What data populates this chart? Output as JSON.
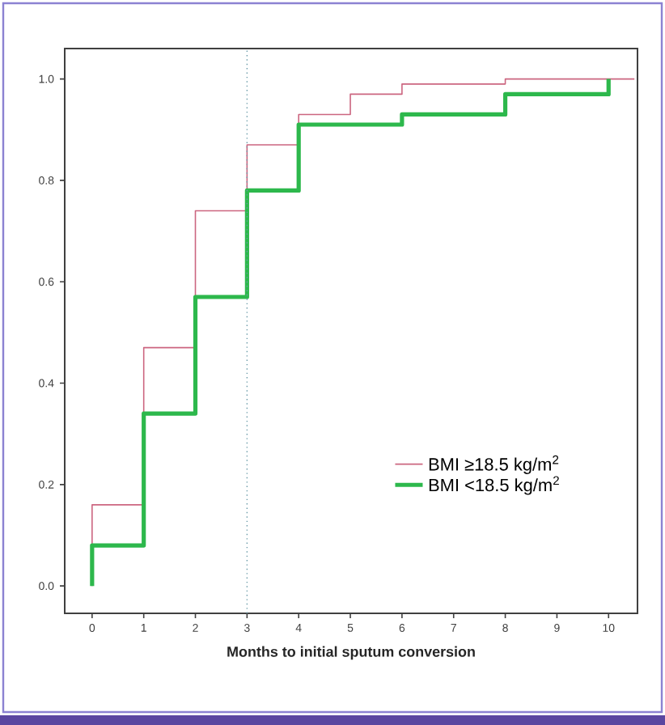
{
  "chart_data": {
    "type": "step",
    "xlabel": "Months to initial sputum conversion",
    "series": [
      {
        "name": "BMI ≥18.5 kg/m$^{2}$",
        "color": "#cc6680",
        "x": [
          0,
          0,
          1,
          2,
          3,
          4,
          5,
          6,
          8,
          10.5
        ],
        "values": [
          0,
          0.16,
          0.47,
          0.74,
          0.87,
          0.93,
          0.97,
          0.99,
          1.0,
          1.0
        ]
      },
      {
        "name": "BMI <18.5 kg/m$^{2}$",
        "color": "#2db84c",
        "x": [
          0,
          0,
          1,
          2,
          3,
          4,
          6,
          8,
          10,
          10
        ],
        "values": [
          0,
          0.08,
          0.34,
          0.57,
          0.78,
          0.91,
          0.93,
          0.97,
          0.97,
          1.0
        ]
      }
    ],
    "xlim": [
      -0.53,
      10.56
    ],
    "ylim": [
      -0.054,
      1.06
    ],
    "xticks": [
      0,
      1,
      2,
      3,
      4,
      5,
      6,
      7,
      8,
      9,
      10
    ],
    "yticks": [
      {
        "value": 0,
        "label": "0.0"
      },
      {
        "value": 0.2,
        "label": "0.2"
      },
      {
        "value": 0.4,
        "label": "0.4"
      },
      {
        "value": 0.6,
        "label": "0.6"
      },
      {
        "value": 0.8,
        "label": "0.8"
      },
      {
        "value": 1.0,
        "label": "1.0"
      }
    ],
    "ref_lines": [
      {
        "axis": "x",
        "value": 3,
        "color": "#6a9aa8",
        "line_style": "dotted"
      }
    ],
    "grid": false,
    "legend": "bottom right",
    "marker": "none",
    "line_style": "solid"
  }
}
